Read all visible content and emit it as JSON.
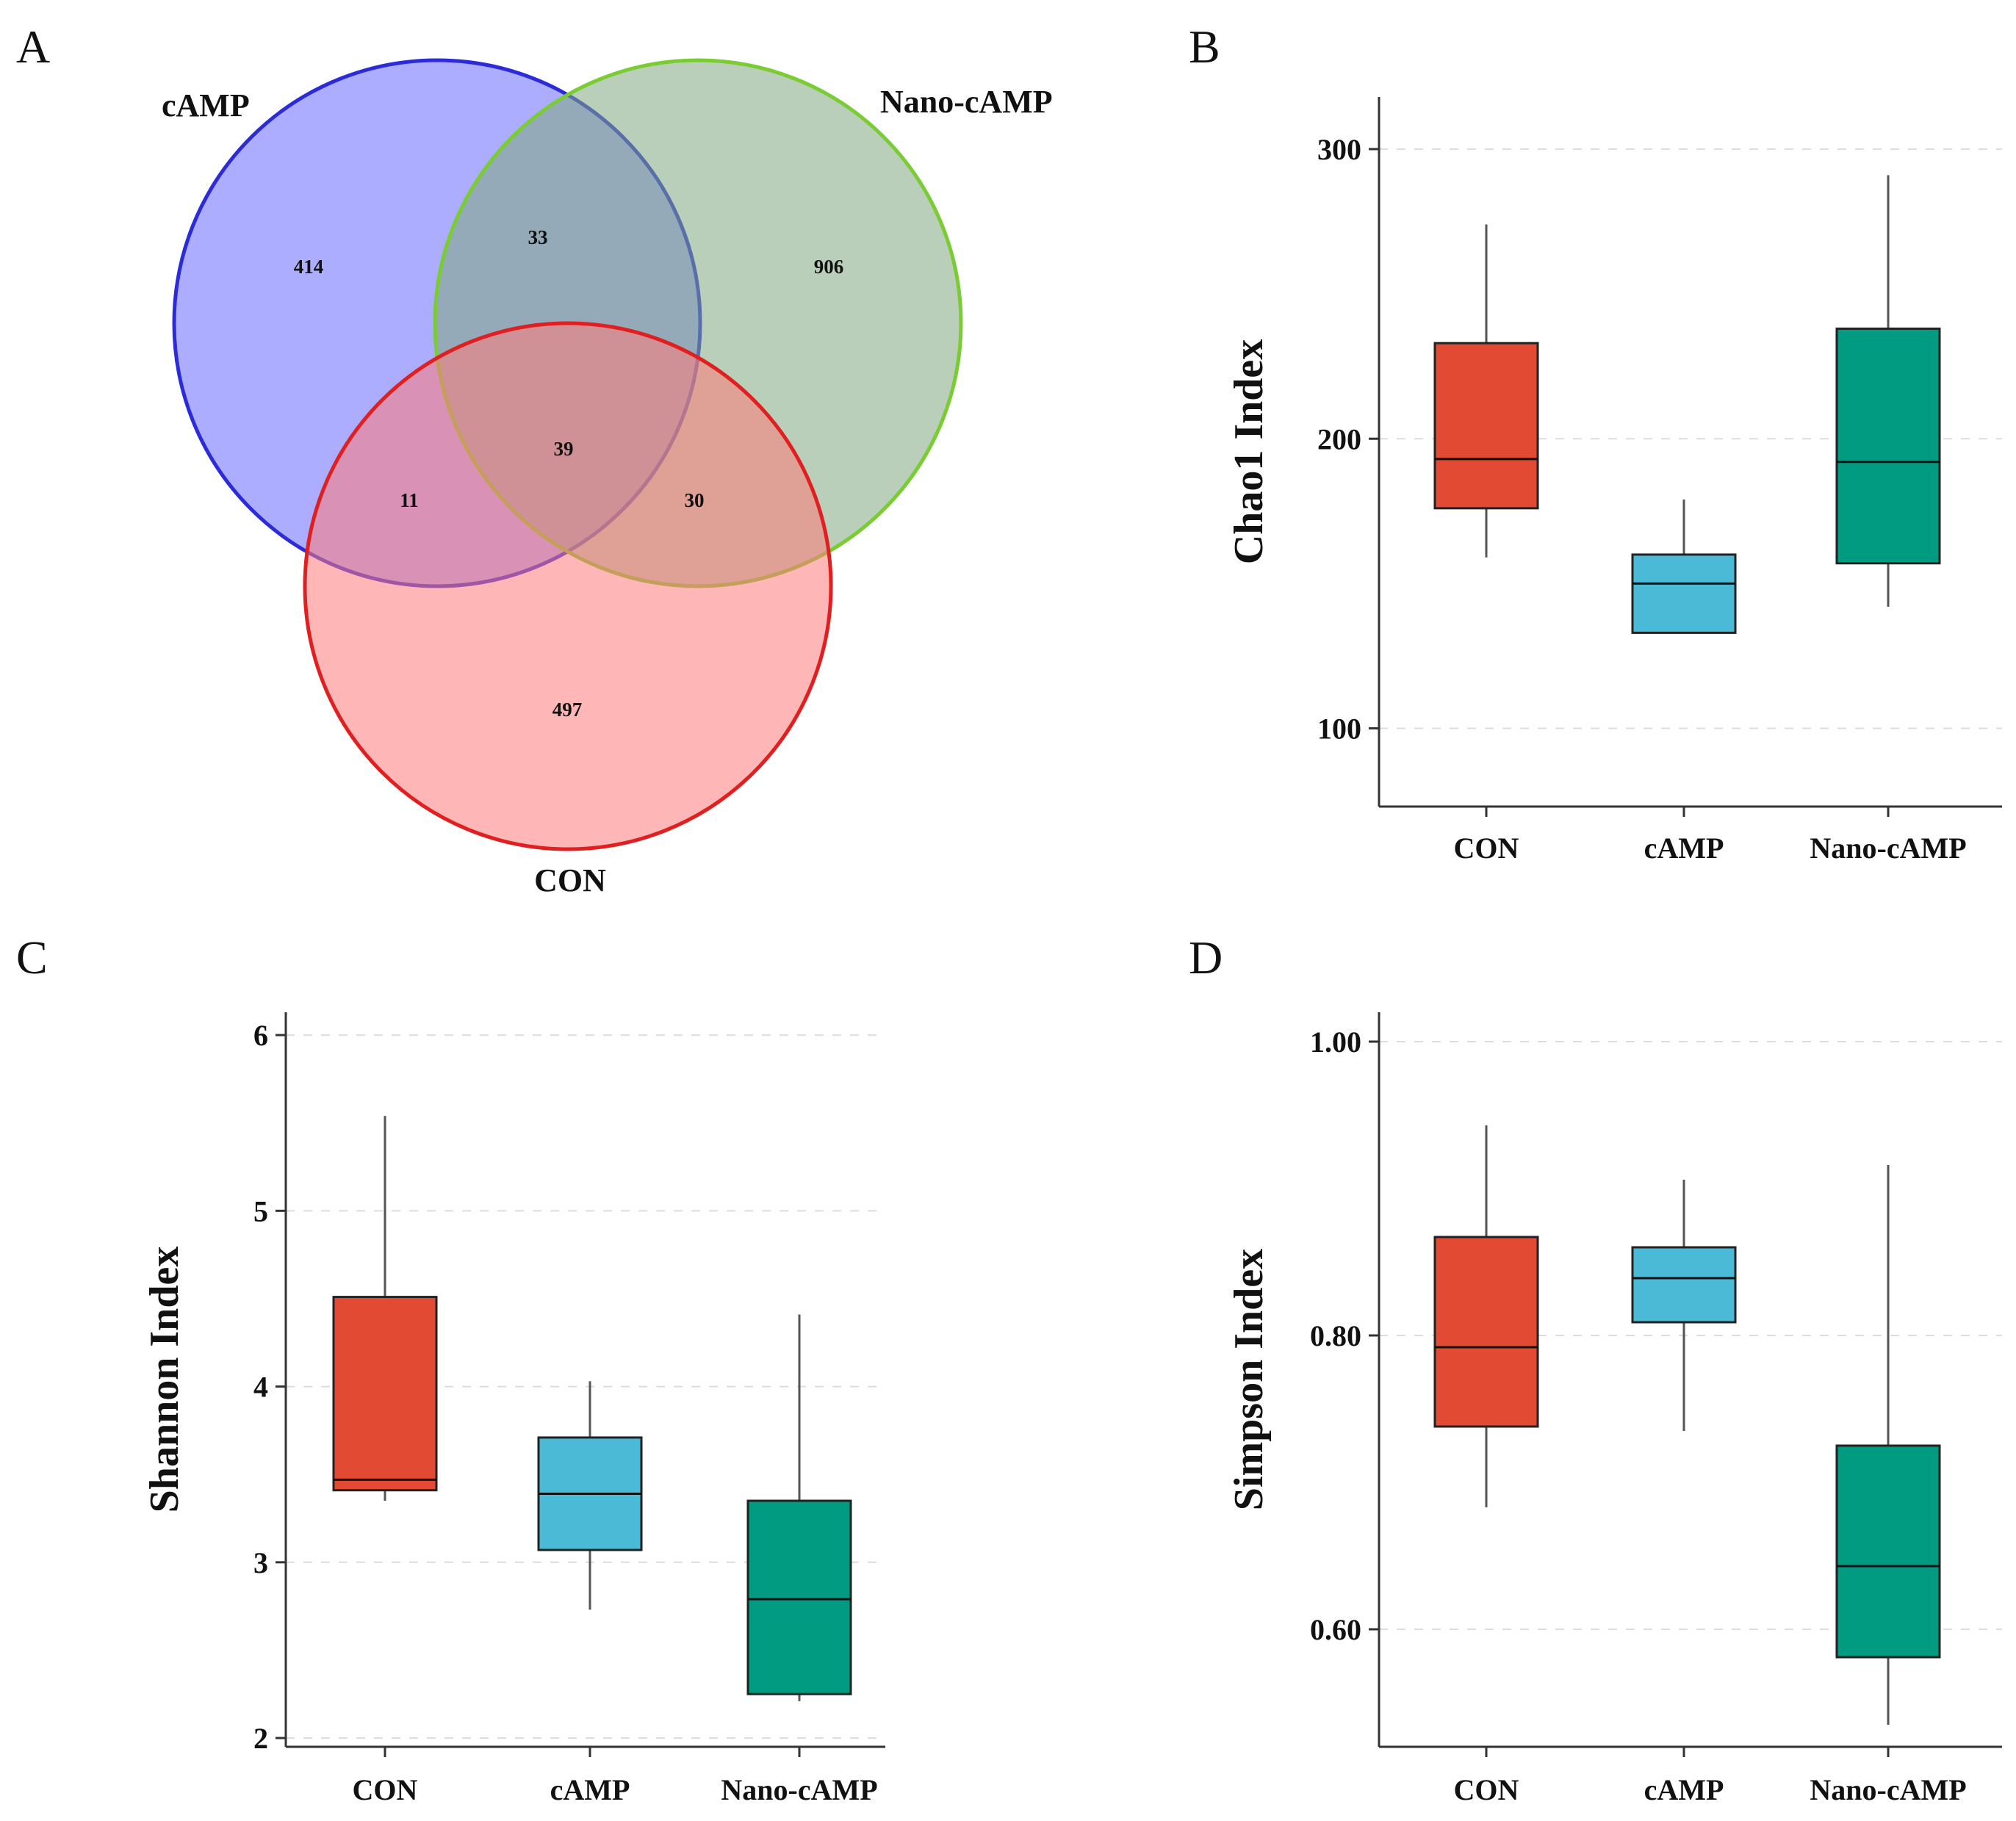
{
  "figure": {
    "panels": [
      "A",
      "B",
      "C",
      "D"
    ]
  },
  "venn": {
    "sets": [
      {
        "name": "cAMP",
        "color": "#2b2bd9",
        "fill": "#6a6aff"
      },
      {
        "name": "Nano-cAMP",
        "color": "#7acc33",
        "fill": "#80a880"
      },
      {
        "name": "CON",
        "color": "#e02020",
        "fill": "#ff7a7a"
      }
    ],
    "regions": {
      "cAMP_only": "414",
      "cAMP_Nano": "33",
      "Nano_only": "906",
      "all": "39",
      "cAMP_CON": "11",
      "Nano_CON": "30",
      "CON_only": "497"
    }
  },
  "chart_data": [
    {
      "panel": "B",
      "type": "box",
      "ylabel": "Chao1 Index",
      "categories": [
        "CON",
        "cAMP",
        "Nano-cAMP"
      ],
      "colors": [
        "#e24a33",
        "#4bbad6",
        "#009b80"
      ],
      "ylim": [
        73,
        318
      ],
      "yticks": [
        100,
        200,
        300
      ],
      "ytick_labels": [
        "100",
        "200",
        "300"
      ],
      "boxes": [
        {
          "min": 159,
          "q1": 176,
          "median": 193,
          "q3": 233,
          "max": 274
        },
        {
          "min": 133,
          "q1": 133,
          "median": 150,
          "q3": 160,
          "max": 179
        },
        {
          "min": 142,
          "q1": 157,
          "median": 192,
          "q3": 238,
          "max": 291
        }
      ]
    },
    {
      "panel": "C",
      "type": "box",
      "ylabel": "Shannon Index",
      "categories": [
        "CON",
        "cAMP",
        "Nano-cAMP"
      ],
      "colors": [
        "#e24a33",
        "#4bbad6",
        "#009b80"
      ],
      "ylim": [
        1.95,
        6.13
      ],
      "yticks": [
        2,
        3,
        4,
        5,
        6
      ],
      "ytick_labels": [
        "2",
        "3",
        "4",
        "5",
        "6"
      ],
      "boxes": [
        {
          "min": 3.35,
          "q1": 3.41,
          "median": 3.47,
          "q3": 4.51,
          "max": 5.54
        },
        {
          "min": 2.73,
          "q1": 3.07,
          "median": 3.39,
          "q3": 3.71,
          "max": 4.03
        },
        {
          "min": 2.21,
          "q1": 2.25,
          "median": 2.79,
          "q3": 3.35,
          "max": 4.41
        }
      ]
    },
    {
      "panel": "D",
      "type": "box",
      "ylabel": "Simpson Index",
      "categories": [
        "CON",
        "cAMP",
        "Nano-cAMP"
      ],
      "colors": [
        "#e24a33",
        "#4bbad6",
        "#009b80"
      ],
      "ylim": [
        0.52,
        1.02
      ],
      "yticks": [
        0.6,
        0.8,
        1.0
      ],
      "ytick_labels": [
        "0.60",
        "0.80",
        "1.00"
      ],
      "boxes": [
        {
          "min": 0.683,
          "q1": 0.738,
          "median": 0.792,
          "q3": 0.867,
          "max": 0.943
        },
        {
          "min": 0.735,
          "q1": 0.809,
          "median": 0.839,
          "q3": 0.86,
          "max": 0.906
        },
        {
          "min": 0.535,
          "q1": 0.581,
          "median": 0.643,
          "q3": 0.725,
          "max": 0.916
        }
      ]
    }
  ]
}
